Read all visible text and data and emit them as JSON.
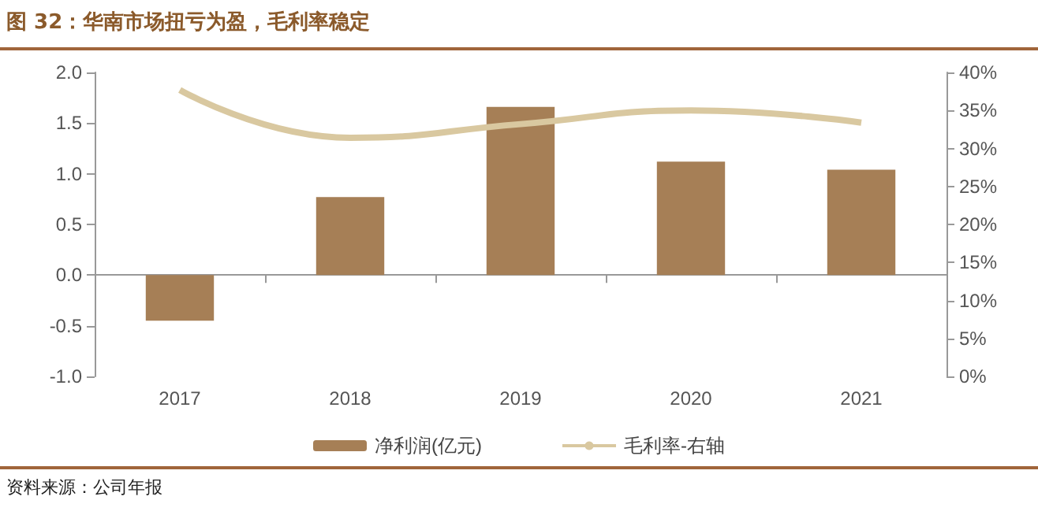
{
  "chart_data": {
    "type": "bar",
    "title": "图 32：华南市场扭亏为盈，毛利率稳定",
    "categories": [
      "2017",
      "2018",
      "2019",
      "2020",
      "2021"
    ],
    "series": [
      {
        "name": "净利润(亿元)",
        "color": "#a67f56",
        "values": [
          -0.45,
          0.77,
          1.66,
          1.12,
          1.04
        ]
      },
      {
        "name": "毛利率-右轴",
        "type": "line",
        "axis": "y2",
        "color": "#d9c8a0",
        "values": [
          37.7,
          31.4,
          33.2,
          35.0,
          33.4
        ]
      }
    ],
    "ylim": [
      -1,
      2
    ],
    "yticks": [
      {
        "value": -1,
        "label": "-1.0"
      },
      {
        "value": -0.5,
        "label": "-0.5"
      },
      {
        "value": 0,
        "label": "0.0"
      },
      {
        "value": 0.5,
        "label": "0.5"
      },
      {
        "value": 1,
        "label": "1.0"
      },
      {
        "value": 1.5,
        "label": "1.5"
      },
      {
        "value": 2,
        "label": "2.0"
      }
    ],
    "y2lim": [
      0,
      40
    ],
    "y2ticks": [
      {
        "value": 0,
        "label": "0%"
      },
      {
        "value": 5,
        "label": "5%"
      },
      {
        "value": 10,
        "label": "10%"
      },
      {
        "value": 15,
        "label": "15%"
      },
      {
        "value": 20,
        "label": "20%"
      },
      {
        "value": 25,
        "label": "25%"
      },
      {
        "value": 30,
        "label": "30%"
      },
      {
        "value": 35,
        "label": "35%"
      },
      {
        "value": 40,
        "label": "40%"
      }
    ],
    "legend": "bottom",
    "marker": "none",
    "annotations": [
      "资料来源：公司年报"
    ]
  }
}
